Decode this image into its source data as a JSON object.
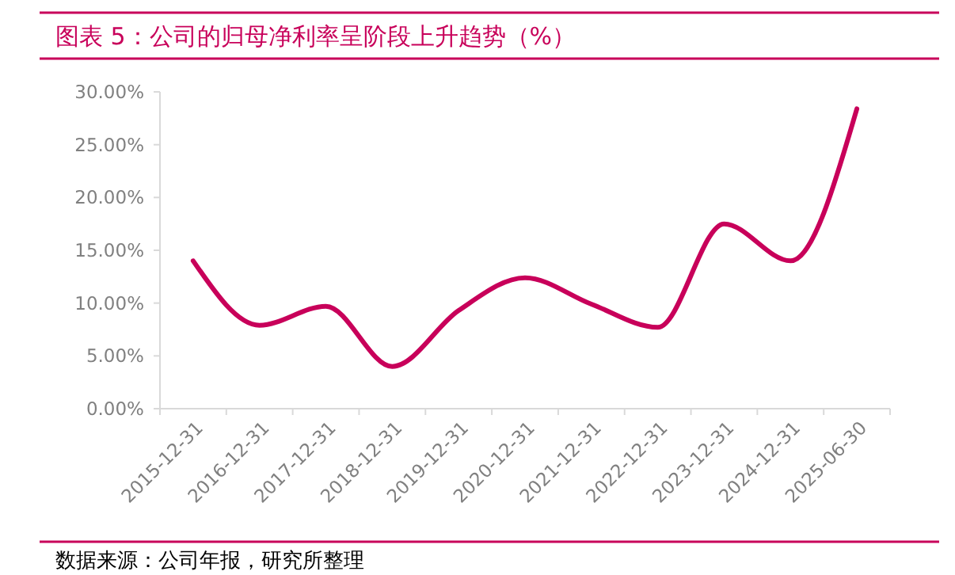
{
  "chart_data": {
    "type": "line",
    "title": "图表 5：公司的归母净利率呈阶段上升趋势（%）",
    "categories": [
      "2015-12-31",
      "2016-12-31",
      "2017-12-31",
      "2018-12-31",
      "2019-12-31",
      "2020-12-31",
      "2021-12-31",
      "2022-12-31",
      "2023-12-31",
      "2024-12-31",
      "2025-06-30"
    ],
    "series": [
      {
        "color": "#c8005a",
        "values": [
          14.0,
          7.9,
          9.7,
          4.0,
          9.3,
          12.4,
          9.9,
          7.7,
          17.5,
          14.0,
          28.4
        ]
      }
    ],
    "ylim": [
      0,
      30
    ],
    "yticks": [
      {
        "value": 0,
        "label": "0.00%"
      },
      {
        "value": 5,
        "label": "5.00%"
      },
      {
        "value": 10,
        "label": "10.00%"
      },
      {
        "value": 15,
        "label": "15.00%"
      },
      {
        "value": 20,
        "label": "20.00%"
      },
      {
        "value": 25,
        "label": "25.00%"
      },
      {
        "value": 30,
        "label": "30.00%"
      }
    ],
    "grid": false,
    "marker": "none",
    "line_style": "solid",
    "annotations": [
      "数据来源：公司年报，研究所整理"
    ]
  }
}
